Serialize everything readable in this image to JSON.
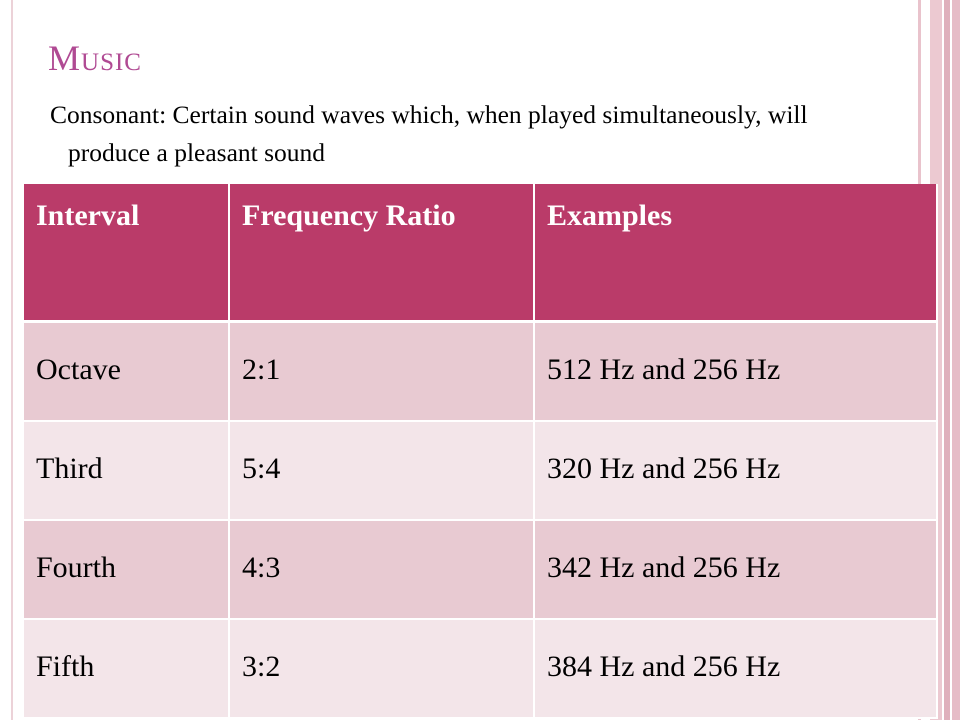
{
  "slide": {
    "title": "Music",
    "body": "Consonant: Certain sound waves which, when played simultaneously, will produce a pleasant sound"
  },
  "table": {
    "headers": [
      "Interval",
      "Frequency Ratio",
      "Examples"
    ],
    "rows": [
      {
        "interval": "Octave",
        "ratio": "2:1",
        "example": "512 Hz and 256 Hz"
      },
      {
        "interval": "Third",
        "ratio": "5:4",
        "example": "320 Hz and 256 Hz"
      },
      {
        "interval": "Fourth",
        "ratio": "4:3",
        "example": "342 Hz and 256 Hz"
      },
      {
        "interval": "Fifth",
        "ratio": "3:2",
        "example": "384 Hz and 256 Hz"
      }
    ]
  },
  "colors": {
    "title": "#b04a93",
    "header_bg": "#ba3b69",
    "row_dark": "#e8cad2",
    "row_light": "#f3e5e9",
    "stripe": "#e6bcc7"
  }
}
